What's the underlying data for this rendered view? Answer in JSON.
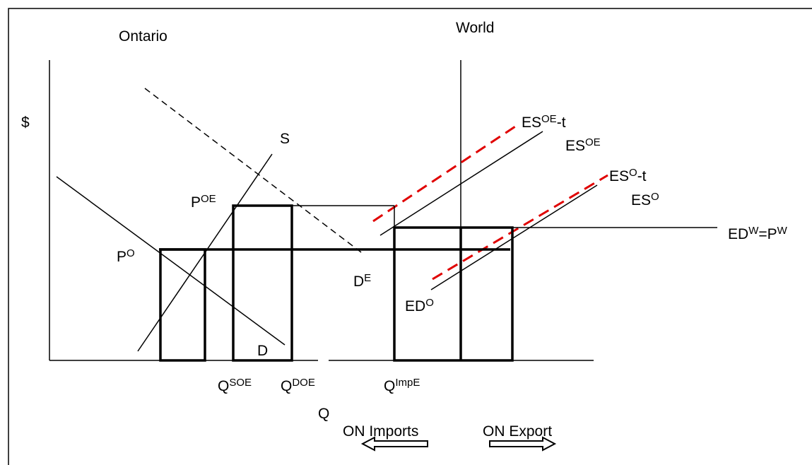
{
  "titles": {
    "ontario": "Ontario",
    "world": "World"
  },
  "axes": {
    "y": "$",
    "x": "Q"
  },
  "curve_labels": [
    [
      {
        "text": "S"
      }
    ],
    [
      {
        "text": "D"
      }
    ],
    [
      {
        "text": "P"
      },
      {
        "sup": "O"
      }
    ],
    [
      {
        "text": "P"
      },
      {
        "sup": "OE"
      }
    ],
    [
      {
        "text": "D"
      },
      {
        "sup": "E"
      }
    ],
    [
      {
        "text": "ED"
      },
      {
        "sup": "O"
      }
    ],
    [
      {
        "text": "ES"
      },
      {
        "sup": "OE"
      },
      {
        "text": "-t"
      }
    ],
    [
      {
        "text": "ES"
      },
      {
        "sup": "OE"
      }
    ],
    [
      {
        "text": "ES"
      },
      {
        "sup": "O"
      },
      {
        "text": "-t"
      }
    ],
    [
      {
        "text": "ES"
      },
      {
        "sup": "O"
      }
    ],
    [
      {
        "text": "ED"
      },
      {
        "sup": "W"
      },
      {
        "text": "=P"
      },
      {
        "sup": "W"
      }
    ]
  ],
  "quantity_labels": [
    [
      {
        "text": "Q"
      },
      {
        "sup": "SOE"
      }
    ],
    [
      {
        "text": "Q"
      },
      {
        "sup": "DOE"
      }
    ],
    [
      {
        "text": "Q"
      },
      {
        "sup": "ImpE"
      }
    ]
  ],
  "arrows": {
    "left": "ON Imports",
    "right": "ON Export"
  }
}
